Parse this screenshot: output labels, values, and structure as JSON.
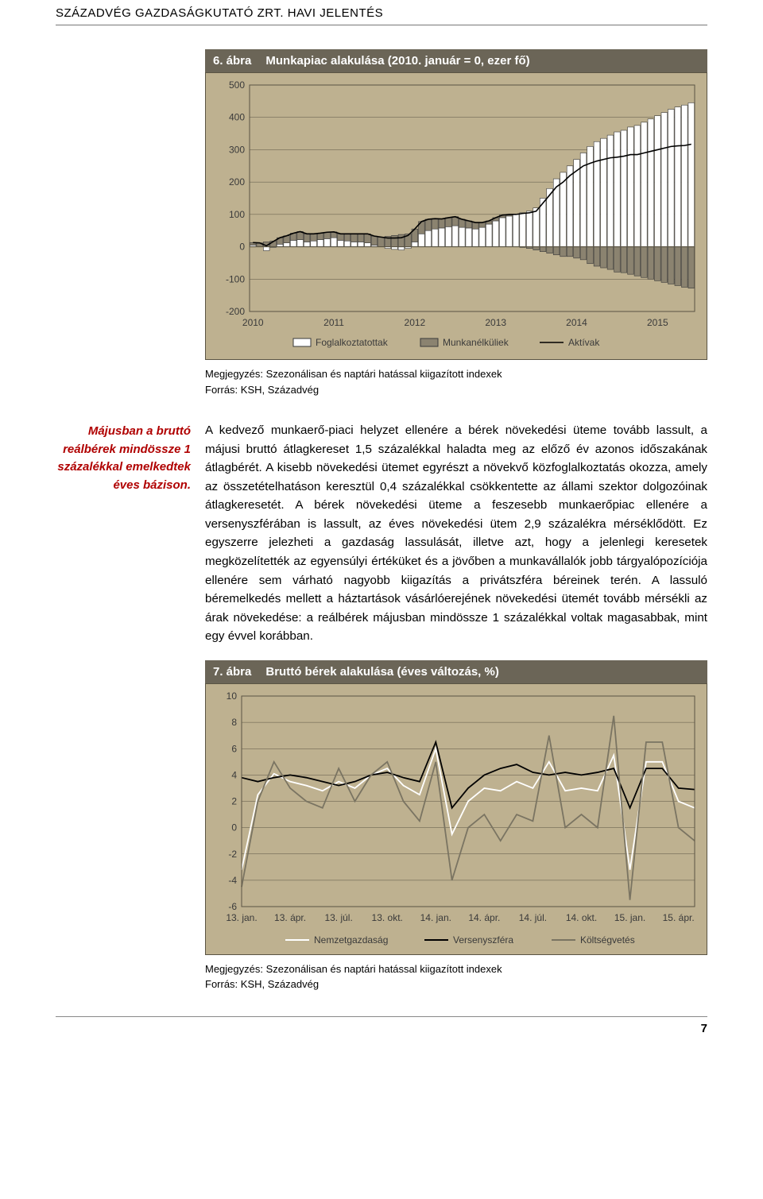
{
  "header": "SZÁZADVÉG GAZDASÁGKUTATÓ ZRT. HAVI JELENTÉS",
  "page_number": "7",
  "margin_note": "Májusban a bruttó reálbérek mindössze 1 százalékkal emelkedtek éves bázison.",
  "body_text": "A kedvező munkaerő-piaci helyzet ellenére a bérek növekedési üteme tovább lassult, a májusi bruttó átlagkereset 1,5 százalékkal haladta meg az előző év azonos időszakának átlagbérét. A kisebb növekedési ütemet egyrészt a növekvő közfoglalkoztatás okozza, amely az összetételhatáson keresztül 0,4 százalékkal csökkentette az állami szektor dolgozóinak átlagkeresetét. A bérek növekedési üteme a feszesebb munkaerőpiac ellenére a versenyszférában is lassult, az éves növekedési ütem 2,9 százalékra mérséklődött. Ez egyszerre jelezheti a gazdaság lassulását, illetve azt, hogy a jelenlegi keresetek megközelítették az egyensúlyi értéküket és a jövőben a munkavállalók jobb tárgyalópozíciója ellenére sem várható nagyobb kiigazítás a privátszféra béreinek terén. A lassuló béremelkedés mellett a háztartások vásárlóerejének növekedési ütemét tovább mérsékli az árak növekedése: a reálbérek májusban mindössze 1 százalékkal voltak magasabbak, mint egy évvel korábban.",
  "fig6": {
    "number": "6. ábra",
    "title": "Munkapiac alakulása (2010. január = 0, ezer fő)",
    "note_line1": "Megjegyzés: Szezonálisan és naptári hatással kiigazított indexek",
    "note_line2": "Forrás: KSH, Századvég",
    "type": "bar+line",
    "background_color": "#beb190",
    "grid_color": "#5a5443",
    "bar_border": "#3a3a3a",
    "bar1_fill": "#ffffff",
    "bar2_fill": "#8b8370",
    "line_color": "#000000",
    "ylim": [
      -200,
      500
    ],
    "ytick_step": 100,
    "yticks": [
      "-200",
      "-100",
      "0",
      "100",
      "200",
      "300",
      "400",
      "500"
    ],
    "xlabels": [
      "2010",
      "2011",
      "2012",
      "2013",
      "2014",
      "2015"
    ],
    "legend": [
      "Foglalkoztatottak",
      "Munkanélküliek",
      "Aktívak"
    ],
    "x_axis_range_months": 66,
    "bars": [
      {
        "m": 0,
        "e": 5,
        "u": 8
      },
      {
        "m": 1,
        "e": 0,
        "u": 12
      },
      {
        "m": 2,
        "e": -12,
        "u": 15
      },
      {
        "m": 3,
        "e": -2,
        "u": 18
      },
      {
        "m": 4,
        "e": 8,
        "u": 20
      },
      {
        "m": 5,
        "e": 12,
        "u": 22
      },
      {
        "m": 6,
        "e": 20,
        "u": 22
      },
      {
        "m": 7,
        "e": 22,
        "u": 25
      },
      {
        "m": 8,
        "e": 15,
        "u": 25
      },
      {
        "m": 9,
        "e": 18,
        "u": 22
      },
      {
        "m": 10,
        "e": 22,
        "u": 20
      },
      {
        "m": 11,
        "e": 25,
        "u": 20
      },
      {
        "m": 12,
        "e": 28,
        "u": 18
      },
      {
        "m": 13,
        "e": 20,
        "u": 20
      },
      {
        "m": 14,
        "e": 18,
        "u": 22
      },
      {
        "m": 15,
        "e": 15,
        "u": 25
      },
      {
        "m": 16,
        "e": 15,
        "u": 25
      },
      {
        "m": 17,
        "e": 12,
        "u": 28
      },
      {
        "m": 18,
        "e": 5,
        "u": 28
      },
      {
        "m": 19,
        "e": 0,
        "u": 30
      },
      {
        "m": 20,
        "e": -5,
        "u": 32
      },
      {
        "m": 21,
        "e": -8,
        "u": 35
      },
      {
        "m": 22,
        "e": -10,
        "u": 38
      },
      {
        "m": 23,
        "e": -5,
        "u": 40
      },
      {
        "m": 24,
        "e": 15,
        "u": 40
      },
      {
        "m": 25,
        "e": 40,
        "u": 38
      },
      {
        "m": 26,
        "e": 50,
        "u": 35
      },
      {
        "m": 27,
        "e": 55,
        "u": 32
      },
      {
        "m": 28,
        "e": 58,
        "u": 28
      },
      {
        "m": 29,
        "e": 62,
        "u": 28
      },
      {
        "m": 30,
        "e": 65,
        "u": 28
      },
      {
        "m": 31,
        "e": 60,
        "u": 25
      },
      {
        "m": 32,
        "e": 58,
        "u": 22
      },
      {
        "m": 33,
        "e": 55,
        "u": 20
      },
      {
        "m": 34,
        "e": 60,
        "u": 15
      },
      {
        "m": 35,
        "e": 70,
        "u": 10
      },
      {
        "m": 36,
        "e": 80,
        "u": 10
      },
      {
        "m": 37,
        "e": 90,
        "u": 8
      },
      {
        "m": 38,
        "e": 95,
        "u": 5
      },
      {
        "m": 39,
        "e": 100,
        "u": 0
      },
      {
        "m": 40,
        "e": 105,
        "u": -2
      },
      {
        "m": 41,
        "e": 110,
        "u": -5
      },
      {
        "m": 42,
        "e": 120,
        "u": -10
      },
      {
        "m": 43,
        "e": 150,
        "u": -15
      },
      {
        "m": 44,
        "e": 180,
        "u": -20
      },
      {
        "m": 45,
        "e": 210,
        "u": -25
      },
      {
        "m": 46,
        "e": 230,
        "u": -30
      },
      {
        "m": 47,
        "e": 250,
        "u": -30
      },
      {
        "m": 48,
        "e": 270,
        "u": -35
      },
      {
        "m": 49,
        "e": 290,
        "u": -40
      },
      {
        "m": 50,
        "e": 310,
        "u": -52
      },
      {
        "m": 51,
        "e": 325,
        "u": -60
      },
      {
        "m": 52,
        "e": 335,
        "u": -65
      },
      {
        "m": 53,
        "e": 345,
        "u": -70
      },
      {
        "m": 54,
        "e": 355,
        "u": -78
      },
      {
        "m": 55,
        "e": 360,
        "u": -80
      },
      {
        "m": 56,
        "e": 370,
        "u": -85
      },
      {
        "m": 57,
        "e": 375,
        "u": -90
      },
      {
        "m": 58,
        "e": 385,
        "u": -95
      },
      {
        "m": 59,
        "e": 395,
        "u": -100
      },
      {
        "m": 60,
        "e": 405,
        "u": -105
      },
      {
        "m": 61,
        "e": 415,
        "u": -110
      },
      {
        "m": 62,
        "e": 425,
        "u": -115
      },
      {
        "m": 63,
        "e": 432,
        "u": -120
      },
      {
        "m": 64,
        "e": 438,
        "u": -125
      },
      {
        "m": 65,
        "e": 445,
        "u": -128
      }
    ]
  },
  "fig7": {
    "number": "7. ábra",
    "title": "Bruttó bérek alakulása (éves változás, %)",
    "note_line1": "Megjegyzés: Szezonálisan és naptári hatással kiigazított indexek",
    "note_line2": "Forrás: KSH, Századvég",
    "type": "line",
    "background_color": "#beb190",
    "grid_color": "#5a5443",
    "line1_color": "#ffffff",
    "line2_color": "#000000",
    "line3_color": "#7a7462",
    "ylim": [
      -6,
      10
    ],
    "ytick_step": 2,
    "yticks": [
      "-6",
      "-4",
      "-2",
      "0",
      "2",
      "4",
      "6",
      "8",
      "10"
    ],
    "xlabels": [
      "13. jan.",
      "13. ápr.",
      "13. júl.",
      "13. okt.",
      "14. jan.",
      "14. ápr.",
      "14. júl.",
      "14. okt.",
      "15. jan.",
      "15. ápr."
    ],
    "legend": [
      "Nemzetgazdaság",
      "Versenyszféra",
      "Költségvetés"
    ],
    "n_points": 29,
    "series": {
      "nemzetgazdasag": [
        -3.2,
        2.5,
        4.1,
        3.5,
        3.2,
        2.8,
        3.5,
        3.0,
        4.0,
        4.5,
        3.2,
        2.5,
        6.0,
        -0.5,
        2.0,
        3.0,
        2.8,
        3.5,
        3.0,
        5.0,
        2.8,
        3.0,
        2.8,
        5.5,
        -3.2,
        5.0,
        5.0,
        2.0,
        1.5
      ],
      "versenyszfera": [
        3.8,
        3.5,
        3.8,
        4.0,
        3.8,
        3.5,
        3.2,
        3.5,
        4.0,
        4.2,
        3.8,
        3.5,
        6.5,
        1.5,
        3.0,
        4.0,
        4.5,
        4.8,
        4.2,
        4.0,
        4.2,
        4.0,
        4.2,
        4.5,
        1.5,
        4.5,
        4.5,
        3.0,
        2.9
      ],
      "koltsegvetes": [
        -4.5,
        2.0,
        5.0,
        3.0,
        2.0,
        1.5,
        4.5,
        2.0,
        4.0,
        5.0,
        2.0,
        0.5,
        5.0,
        -4.0,
        0.0,
        1.0,
        -1.0,
        1.0,
        0.5,
        7.0,
        0.0,
        1.0,
        0.0,
        8.5,
        -5.5,
        6.5,
        6.5,
        0.0,
        -1.0
      ]
    }
  }
}
